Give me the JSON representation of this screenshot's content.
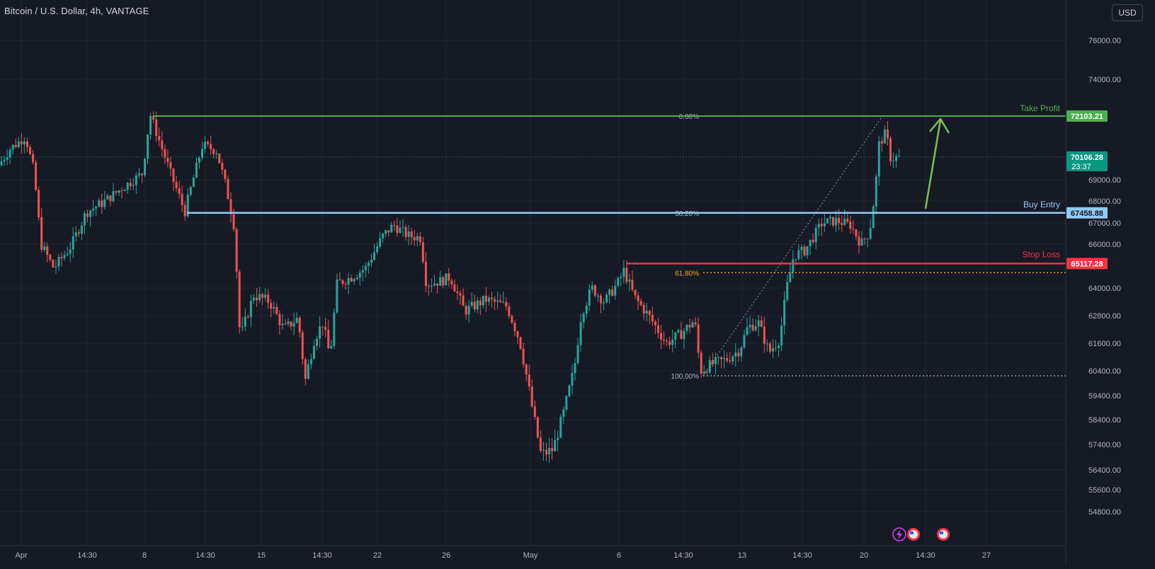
{
  "header": {
    "symbol_title": "Bitcoin / U.S. Dollar, 4h, VANTAGE",
    "currency": "USD"
  },
  "colors": {
    "background": "#161a25",
    "grid": "#232733",
    "up_candle": "#26a69a",
    "down_candle": "#ef5350",
    "take_profit": "#4caf50",
    "buy_entry": "#90caf9",
    "stop_loss": "#f23645",
    "fib_618": "#f9a825",
    "fib_neutral": "#b2b5be",
    "arrow": "#7cc152",
    "current_price_bg": "#089981"
  },
  "chart_data": {
    "type": "candlestick",
    "title": "Bitcoin / U.S. Dollar, 4h, VANTAGE",
    "y_axis": {
      "ticks": [
        "76000.00",
        "74000.00",
        "69000.00",
        "68000.00",
        "67000.00",
        "66000.00",
        "64000.00",
        "62800.00",
        "61600.00",
        "60400.00",
        "59400.00",
        "58400.00",
        "57400.00",
        "56400.00",
        "55600.00",
        "54800.00"
      ],
      "scale": "non-uniform (as printed)"
    },
    "x_axis": {
      "ticks": [
        "Apr",
        "14:30",
        "8",
        "14:30",
        "15",
        "14:30",
        "22",
        "26",
        "May",
        "6",
        "14:30",
        "13",
        "14:30",
        "20",
        "14:30",
        "27"
      ]
    },
    "grid": true,
    "ohlc_anchor_path": [
      [
        0,
        69600
      ],
      [
        18,
        70500
      ],
      [
        40,
        71100
      ],
      [
        52,
        69400
      ],
      [
        62,
        66000
      ],
      [
        80,
        64900
      ],
      [
        104,
        65900
      ],
      [
        126,
        67500
      ],
      [
        148,
        67900
      ],
      [
        180,
        68700
      ],
      [
        205,
        69300
      ],
      [
        216,
        72200
      ],
      [
        245,
        69300
      ],
      [
        265,
        67500
      ],
      [
        290,
        70700
      ],
      [
        310,
        70400
      ],
      [
        323,
        68700
      ],
      [
        335,
        66800
      ],
      [
        343,
        61800
      ],
      [
        362,
        63700
      ],
      [
        385,
        63400
      ],
      [
        405,
        62200
      ],
      [
        425,
        62700
      ],
      [
        435,
        60000
      ],
      [
        448,
        61800
      ],
      [
        460,
        62500
      ],
      [
        470,
        61000
      ],
      [
        480,
        64200
      ],
      [
        500,
        64500
      ],
      [
        520,
        64900
      ],
      [
        545,
        66400
      ],
      [
        560,
        66900
      ],
      [
        580,
        66400
      ],
      [
        598,
        66300
      ],
      [
        606,
        64200
      ],
      [
        625,
        64300
      ],
      [
        640,
        64500
      ],
      [
        660,
        63000
      ],
      [
        690,
        63500
      ],
      [
        720,
        63200
      ],
      [
        738,
        61700
      ],
      [
        750,
        59800
      ],
      [
        760,
        58200
      ],
      [
        768,
        57000
      ],
      [
        785,
        57200
      ],
      [
        800,
        58700
      ],
      [
        815,
        60500
      ],
      [
        825,
        62900
      ],
      [
        840,
        64000
      ],
      [
        858,
        63400
      ],
      [
        878,
        64300
      ],
      [
        885,
        64800
      ],
      [
        900,
        63600
      ],
      [
        920,
        62800
      ],
      [
        945,
        61600
      ],
      [
        965,
        62000
      ],
      [
        985,
        62600
      ],
      [
        993,
        60400
      ],
      [
        1010,
        60700
      ],
      [
        1030,
        60900
      ],
      [
        1048,
        61300
      ],
      [
        1060,
        62300
      ],
      [
        1075,
        62500
      ],
      [
        1090,
        61200
      ],
      [
        1105,
        61800
      ],
      [
        1115,
        64000
      ],
      [
        1125,
        65500
      ],
      [
        1140,
        65700
      ],
      [
        1150,
        66200
      ],
      [
        1165,
        67000
      ],
      [
        1185,
        67100
      ],
      [
        1205,
        66900
      ],
      [
        1220,
        66000
      ],
      [
        1232,
        66600
      ],
      [
        1240,
        68500
      ],
      [
        1245,
        70700
      ],
      [
        1255,
        71300
      ],
      [
        1262,
        70000
      ],
      [
        1270,
        70100
      ]
    ],
    "annotations": {
      "take_profit": {
        "label": "Take Profit",
        "price": "72103.21"
      },
      "buy_entry": {
        "label": "Buy Entry",
        "price": "67458.88"
      },
      "stop_loss": {
        "label": "Stop Loss",
        "price": "65117.28"
      },
      "current_price": {
        "price": "70106.28",
        "countdown": "23:37"
      },
      "fib_levels": [
        {
          "label": "0.00%",
          "price": 72103.21
        },
        {
          "label": "38.20%",
          "price": 67458.88
        },
        {
          "label": "61.80%",
          "price": 64700
        },
        {
          "label": "100.00%",
          "price": 60200
        }
      ]
    }
  }
}
